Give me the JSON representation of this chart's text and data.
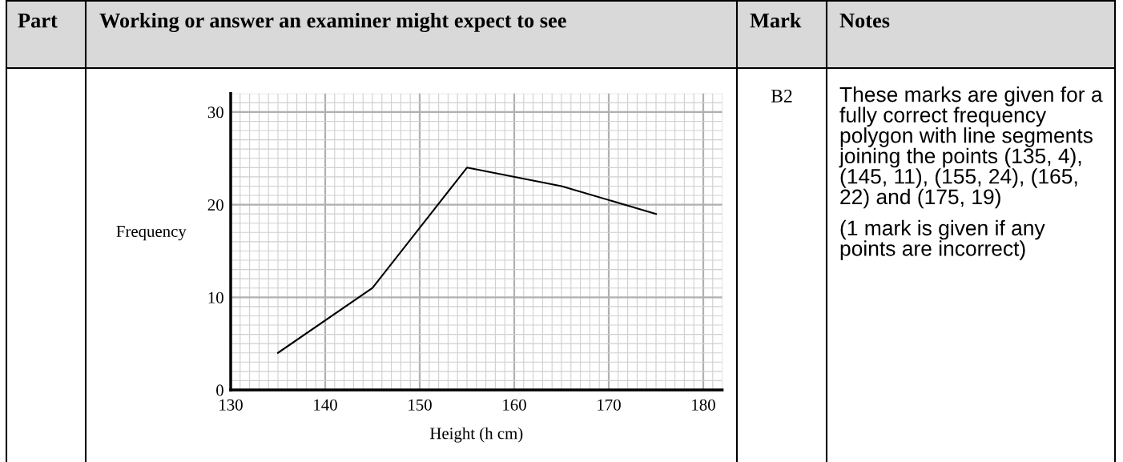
{
  "chart_data": {
    "type": "line",
    "xlabel": "Height (h cm)",
    "ylabel": "Frequency",
    "x": [
      135,
      145,
      155,
      165,
      175
    ],
    "series": [
      {
        "color": "#000000",
        "values": [
          4,
          11,
          24,
          22,
          19
        ]
      }
    ],
    "xlim": [
      130,
      182
    ],
    "ylim": [
      0,
      32
    ],
    "xticks": [
      130,
      140,
      150,
      160,
      170,
      180
    ],
    "yticks": [
      0,
      10,
      20,
      30
    ],
    "grid": true,
    "legend": false,
    "marker": "none",
    "line_style": "solid",
    "annotations": [
      "Part",
      "Working or answer an examiner might expect to see",
      "Mark",
      "Notes",
      "B2",
      "These marks are given for a fully correct frequency polygon with line segments joining the points (135, 4), (145, 11), (155, 24), (165, 22) and (175, 19)",
      "(1 mark is given if any points are incorrect)"
    ]
  }
}
